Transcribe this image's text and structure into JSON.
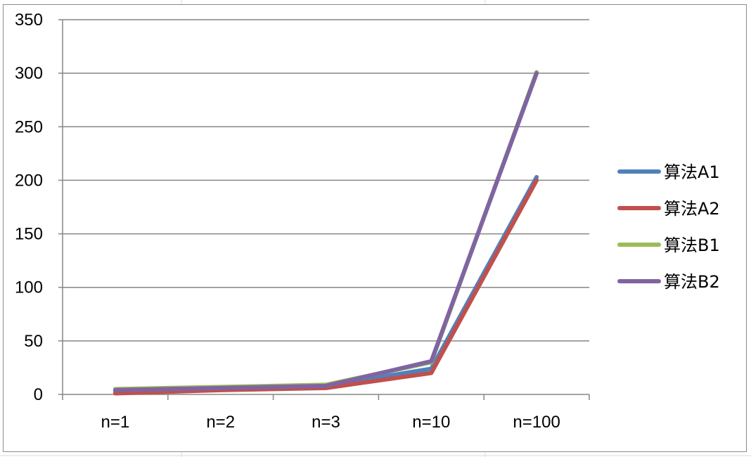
{
  "chart_data": {
    "type": "line",
    "categories": [
      "n=1",
      "n=2",
      "n=3",
      "n=10",
      "n=100"
    ],
    "ylim": [
      0,
      350
    ],
    "yticks": [
      "0",
      "50",
      "100",
      "150",
      "200",
      "250",
      "300",
      "350"
    ],
    "grid": true,
    "legend_position": "right",
    "title": "",
    "xlabel": "",
    "ylabel": "",
    "series": [
      {
        "name": "算法A1",
        "color": "#4F81BD",
        "values": [
          3,
          5,
          8,
          24,
          203
        ]
      },
      {
        "name": "算法A2",
        "color": "#C0504D",
        "values": [
          1,
          4,
          6,
          20,
          200
        ]
      },
      {
        "name": "算法B1",
        "color": "#9BBB59",
        "values": [
          5,
          7,
          9,
          30,
          301
        ]
      },
      {
        "name": "算法B2",
        "color": "#8064A2",
        "values": [
          4,
          6,
          8,
          31,
          300
        ]
      }
    ]
  }
}
